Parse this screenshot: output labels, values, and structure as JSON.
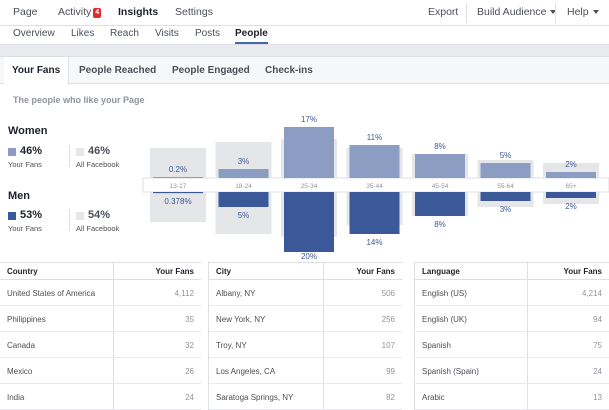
{
  "topnav": {
    "page": "Page",
    "activity": "Activity",
    "activity_badge": "4",
    "insights": "Insights",
    "settings": "Settings",
    "export": "Export",
    "build_audience": "Build Audience",
    "help": "Help"
  },
  "subnav": {
    "overview": "Overview",
    "likes": "Likes",
    "reach": "Reach",
    "visits": "Visits",
    "posts": "Posts",
    "people": "People"
  },
  "tabs": {
    "your_fans": "Your Fans",
    "people_reached": "People Reached",
    "people_engaged": "People Engaged",
    "check_ins": "Check-ins"
  },
  "subtitle": "The people who like your Page",
  "legend": {
    "women": {
      "title": "Women",
      "fans_pct": "46%",
      "fans_label": "Your Fans",
      "fb_pct": "46%",
      "fb_label": "All Facebook"
    },
    "men": {
      "title": "Men",
      "fans_pct": "53%",
      "fans_label": "Your Fans",
      "fb_pct": "54%",
      "fb_label": "All Facebook"
    }
  },
  "colors": {
    "women": "#8b9dc3",
    "men": "#3b5998",
    "facebook": "#e5e6e8"
  },
  "chart_data": {
    "type": "bar",
    "categories": [
      "13-17",
      "18-24",
      "25-34",
      "35-44",
      "45-54",
      "55-64",
      "65+"
    ],
    "series": [
      {
        "name": "Women",
        "values": [
          0.2,
          3,
          17,
          11,
          8,
          5,
          2
        ],
        "labels": [
          "0.2%",
          "3%",
          "17%",
          "11%",
          "8%",
          "5%",
          "2%"
        ]
      },
      {
        "name": "Men",
        "values": [
          0.378,
          5,
          20,
          14,
          8,
          3,
          2
        ],
        "labels": [
          "0.378%",
          "5%",
          "20%",
          "14%",
          "8%",
          "3%",
          "2%"
        ]
      }
    ],
    "facebook_women": [
      10,
      12,
      13,
      10,
      8,
      6,
      5
    ],
    "facebook_men": [
      10,
      14,
      15,
      11,
      8,
      5,
      4
    ],
    "ylim": [
      0,
      20
    ]
  },
  "tables": {
    "country": {
      "header": "Country",
      "value_header": "Your Fans",
      "rows": [
        {
          "name": "United States of America",
          "value": "4,112"
        },
        {
          "name": "Philippines",
          "value": "35"
        },
        {
          "name": "Canada",
          "value": "32"
        },
        {
          "name": "Mexico",
          "value": "26"
        },
        {
          "name": "India",
          "value": "24"
        }
      ]
    },
    "city": {
      "header": "City",
      "value_header": "Your Fans",
      "rows": [
        {
          "name": "Albany, NY",
          "value": "506"
        },
        {
          "name": "New York, NY",
          "value": "256"
        },
        {
          "name": "Troy, NY",
          "value": "107"
        },
        {
          "name": "Los Angeles, CA",
          "value": "99"
        },
        {
          "name": "Saratoga Springs, NY",
          "value": "82"
        }
      ]
    },
    "language": {
      "header": "Language",
      "value_header": "Your Fans",
      "rows": [
        {
          "name": "English (US)",
          "value": "4,214"
        },
        {
          "name": "English (UK)",
          "value": "94"
        },
        {
          "name": "Spanish",
          "value": "75"
        },
        {
          "name": "Spanish (Spain)",
          "value": "24"
        },
        {
          "name": "Arabic",
          "value": "13"
        }
      ]
    }
  }
}
